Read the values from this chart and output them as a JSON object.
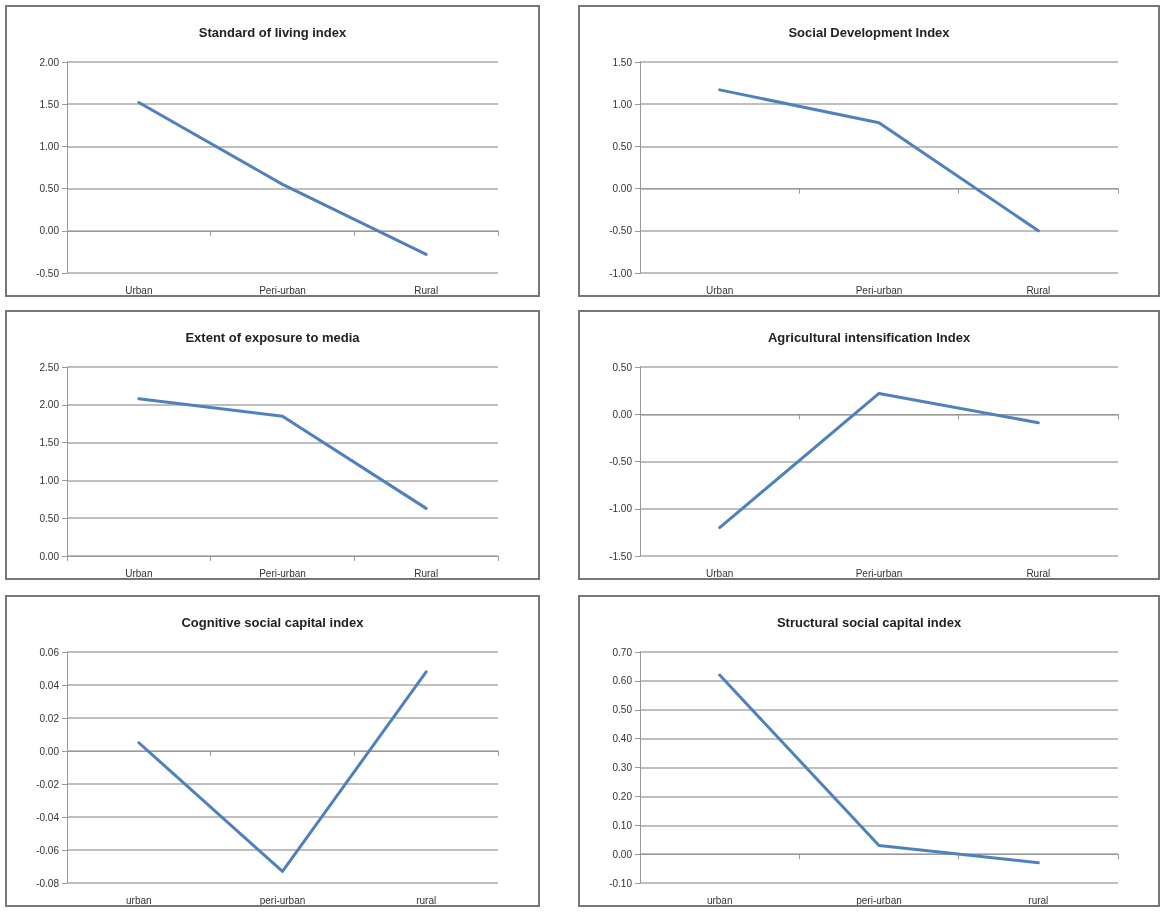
{
  "chart_data": [
    {
      "type": "line",
      "title": "Standard of living index",
      "categories": [
        "Urban",
        "Peri-urban",
        "Rural"
      ],
      "values": [
        1.52,
        0.55,
        -0.28
      ],
      "color": "#4f81bd",
      "ylim": [
        -0.5,
        2
      ],
      "yticks": [
        {
          "value": -0.5,
          "label": "-0.50"
        },
        {
          "value": 0,
          "label": "0.00"
        },
        {
          "value": 0.5,
          "label": "0.50"
        },
        {
          "value": 1,
          "label": "1.00"
        },
        {
          "value": 1.5,
          "label": "1.50"
        },
        {
          "value": 2,
          "label": "2.00"
        }
      ],
      "grid": "y",
      "marker": "none",
      "line_style": "solid"
    },
    {
      "type": "line",
      "title": "Social Development Index",
      "categories": [
        "Urban",
        "Peri-urban",
        "Rural"
      ],
      "values": [
        1.17,
        0.78,
        -0.5
      ],
      "color": "#4f81bd",
      "ylim": [
        -1,
        1.5
      ],
      "yticks": [
        {
          "value": -1,
          "label": "-1.00"
        },
        {
          "value": -0.5,
          "label": "-0.50"
        },
        {
          "value": 0,
          "label": "0.00"
        },
        {
          "value": 0.5,
          "label": "0.50"
        },
        {
          "value": 1,
          "label": "1.00"
        },
        {
          "value": 1.5,
          "label": "1.50"
        }
      ],
      "grid": "y",
      "marker": "none",
      "line_style": "solid"
    },
    {
      "type": "line",
      "title": "Extent of exposure to media",
      "categories": [
        "Urban",
        "Peri-urban",
        "Rural"
      ],
      "values": [
        2.08,
        1.85,
        0.63
      ],
      "color": "#4f81bd",
      "ylim": [
        0,
        2.5
      ],
      "yticks": [
        {
          "value": 0,
          "label": "0.00"
        },
        {
          "value": 0.5,
          "label": "0.50"
        },
        {
          "value": 1,
          "label": "1.00"
        },
        {
          "value": 1.5,
          "label": "1.50"
        },
        {
          "value": 2,
          "label": "2.00"
        },
        {
          "value": 2.5,
          "label": "2.50"
        }
      ],
      "grid": "y",
      "marker": "none",
      "line_style": "solid"
    },
    {
      "type": "line",
      "title": "Agricultural intensification Index",
      "categories": [
        "Urban",
        "Peri-urban",
        "Rural"
      ],
      "values": [
        -1.2,
        0.22,
        -0.09
      ],
      "color": "#4f81bd",
      "ylim": [
        -1.5,
        0.5
      ],
      "yticks": [
        {
          "value": -1.5,
          "label": "-1.50"
        },
        {
          "value": -1,
          "label": "-1.00"
        },
        {
          "value": -0.5,
          "label": "-0.50"
        },
        {
          "value": 0,
          "label": "0.00"
        },
        {
          "value": 0.5,
          "label": "0.50"
        }
      ],
      "grid": "y",
      "marker": "none",
      "line_style": "solid"
    },
    {
      "type": "line",
      "title": "Cognitive social capital index",
      "categories": [
        "urban",
        "peri-urban",
        "rural"
      ],
      "values": [
        0.005,
        -0.073,
        0.048
      ],
      "color": "#4f81bd",
      "ylim": [
        -0.08,
        0.06
      ],
      "yticks": [
        {
          "value": -0.08,
          "label": "-0.08"
        },
        {
          "value": -0.06,
          "label": "-0.06"
        },
        {
          "value": -0.04,
          "label": "-0.04"
        },
        {
          "value": -0.02,
          "label": "-0.02"
        },
        {
          "value": 0,
          "label": "0.00"
        },
        {
          "value": 0.02,
          "label": "0.02"
        },
        {
          "value": 0.04,
          "label": "0.04"
        },
        {
          "value": 0.06,
          "label": "0.06"
        }
      ],
      "grid": "y",
      "marker": "none",
      "line_style": "solid"
    },
    {
      "type": "line",
      "title": "Structural social capital index",
      "categories": [
        "urban",
        "peri-urban",
        "rural"
      ],
      "values": [
        0.62,
        0.03,
        -0.03
      ],
      "color": "#4f81bd",
      "ylim": [
        -0.1,
        0.7
      ],
      "yticks": [
        {
          "value": -0.1,
          "label": "-0.10"
        },
        {
          "value": 0,
          "label": "0.00"
        },
        {
          "value": 0.1,
          "label": "0.10"
        },
        {
          "value": 0.2,
          "label": "0.20"
        },
        {
          "value": 0.3,
          "label": "0.30"
        },
        {
          "value": 0.4,
          "label": "0.40"
        },
        {
          "value": 0.5,
          "label": "0.50"
        },
        {
          "value": 0.6,
          "label": "0.60"
        },
        {
          "value": 0.7,
          "label": "0.70"
        }
      ],
      "grid": "y",
      "marker": "none",
      "line_style": "solid"
    }
  ]
}
